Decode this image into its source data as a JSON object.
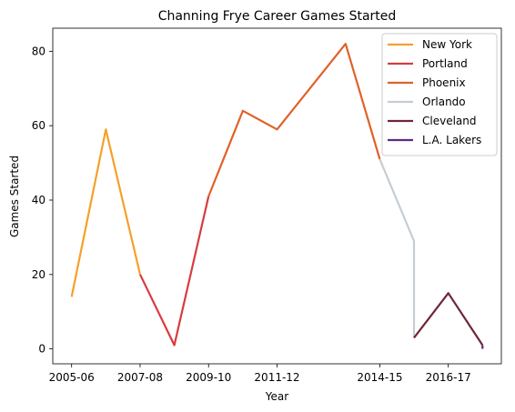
{
  "chart_data": {
    "type": "line",
    "title": "Channing Frye Career Games Started",
    "xlabel": "Year",
    "ylabel": "Games Started",
    "x_tick_labels": [
      "2005-06",
      "2007-08",
      "2009-10",
      "2011-12",
      "2014-15",
      "2016-17"
    ],
    "y_ticks": [
      0,
      20,
      40,
      60,
      80
    ],
    "ylim": [
      -4,
      86.2
    ],
    "grid": false,
    "legend_position": "top-right",
    "series": [
      {
        "name": "New York",
        "color": "#f5a02a",
        "points": [
          [
            "2005-06",
            14
          ],
          [
            "2006-07",
            59
          ],
          [
            "2007-08",
            20
          ]
        ]
      },
      {
        "name": "Portland",
        "color": "#d93b40",
        "points": [
          [
            "2007-08",
            20
          ],
          [
            "2008-09",
            1
          ],
          [
            "2009-10",
            41
          ]
        ]
      },
      {
        "name": "Phoenix",
        "color": "#e0612a",
        "points": [
          [
            "2009-10",
            41
          ],
          [
            "2010-11",
            64
          ],
          [
            "2011-12",
            59
          ],
          [
            "2013-14",
            82
          ],
          [
            "2014-15",
            51
          ]
        ]
      },
      {
        "name": "Orlando",
        "color": "#c4cdd3",
        "points": [
          [
            "2014-15",
            51
          ],
          [
            "2015-16",
            29
          ],
          [
            "2015-16",
            3
          ]
        ]
      },
      {
        "name": "Cleveland",
        "color": "#6f2638",
        "points": [
          [
            "2015-16",
            3
          ],
          [
            "2016-17",
            15
          ],
          [
            "2017-18",
            1
          ]
        ]
      },
      {
        "name": "L.A. Lakers",
        "color": "#5b2d82",
        "points": [
          [
            "2017-18",
            1
          ],
          [
            "2017-18",
            0
          ]
        ]
      }
    ]
  }
}
